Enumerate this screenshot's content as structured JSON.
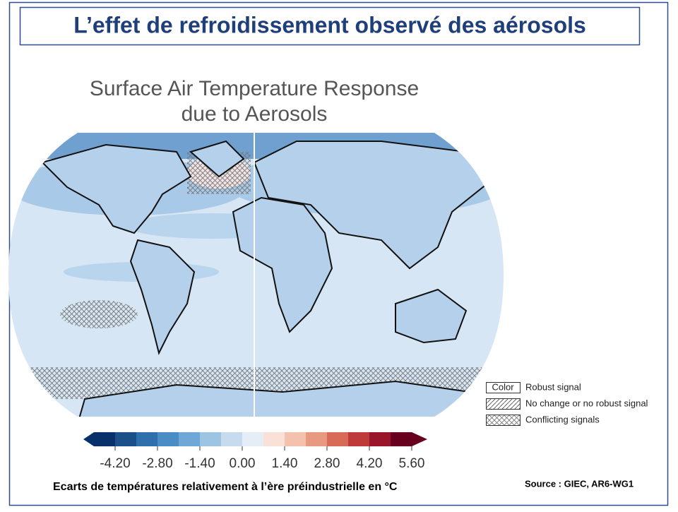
{
  "header": {
    "title": "L’effet de refroidissement observé des aérosols"
  },
  "map": {
    "title_lines": [
      "Surface Air Temperature Response",
      "due to Aerosols"
    ]
  },
  "legend": {
    "color_key": "Color",
    "items": [
      "Robust signal",
      "No change or no robust signal",
      "Conflicting signals"
    ]
  },
  "colorbar": {
    "lim": [
      -4.9,
      5.6
    ],
    "ticks": [
      {
        "value": -4.2,
        "label": "-4.20"
      },
      {
        "value": -2.8,
        "label": "-2.80"
      },
      {
        "value": -1.4,
        "label": "-1.40"
      },
      {
        "value": 0,
        "label": "0.00"
      },
      {
        "value": 1.4,
        "label": "1.40"
      },
      {
        "value": 2.8,
        "label": "2.80"
      },
      {
        "value": 4.2,
        "label": "4.20"
      },
      {
        "value": 5.6,
        "label": "5.60"
      }
    ],
    "colors": [
      "#08306b",
      "#1b4f8a",
      "#2f6fab",
      "#4a8cc4",
      "#6fa8d6",
      "#9cc5e4",
      "#c6dcee",
      "#e5eef6",
      "#f9e1d7",
      "#f3c1ac",
      "#e89a80",
      "#d86b57",
      "#bf3b3a",
      "#98152a",
      "#67001f"
    ]
  },
  "caption": "Ecarts de températures relativement à l’ère préindustrielle en °C",
  "source": "Source : GIEC, AR6-WG1"
}
